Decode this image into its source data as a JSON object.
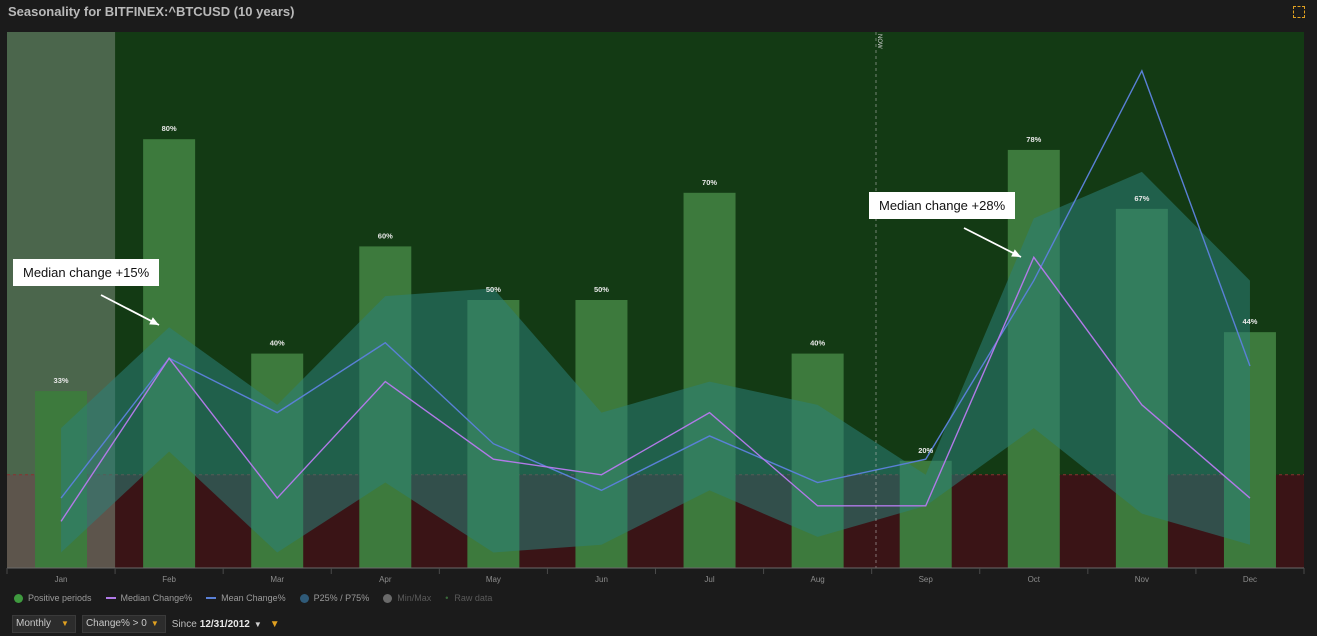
{
  "title": "Seasonality for BITFINEX:^BTCUSD (10 years)",
  "now_label": "NOW",
  "chart_data": {
    "type": "bar",
    "title": "Seasonality for BITFINEX:^BTCUSD (10 years)",
    "categories": [
      "Jan",
      "Feb",
      "Mar",
      "Apr",
      "May",
      "Jun",
      "Jul",
      "Aug",
      "Sep",
      "Oct",
      "Nov",
      "Dec"
    ],
    "positive_periods_pct": [
      33,
      80,
      40,
      60,
      50,
      50,
      70,
      40,
      20,
      78,
      67,
      44
    ],
    "positive_labels": [
      "33%",
      "80%",
      "40%",
      "60%",
      "50%",
      "50%",
      "70%",
      "40%",
      "20%",
      "78%",
      "67%",
      "44%"
    ],
    "series": [
      {
        "name": "Median Change%",
        "values": [
          -6,
          15,
          -3,
          12,
          2,
          0,
          8,
          -4,
          -4,
          28,
          9,
          -3
        ]
      },
      {
        "name": "Mean Change%",
        "values": [
          -3,
          15,
          8,
          17,
          4,
          -2,
          5,
          -1,
          2,
          25,
          52,
          14
        ]
      },
      {
        "name": "P25%",
        "values": [
          -10,
          3,
          -10,
          -1,
          -10,
          -9,
          -2,
          -8,
          -4,
          6,
          -5,
          -9
        ]
      },
      {
        "name": "P75%",
        "values": [
          6,
          19,
          9,
          23,
          24,
          8,
          12,
          9,
          0,
          33,
          39,
          25
        ]
      }
    ],
    "ylim": [
      -12,
      57
    ],
    "bar_scale_max": 100,
    "grid": false,
    "legend_position": "bottom-left",
    "now_between": [
      "Aug",
      "Sep"
    ]
  },
  "colors": {
    "positive_zone": "#133a14",
    "negative_zone": "#3a1416",
    "bars": "#3d7a3d",
    "band": "#2b8078",
    "median_line": "#b17ae8",
    "mean_line": "#5a80d6",
    "highlight": "#7a8a7a"
  },
  "legend": {
    "positive": "Positive periods",
    "median": "Median Change%",
    "mean": "Mean Change%",
    "pct": "P25% / P75%",
    "minmax": "Min/Max",
    "raw": "Raw data"
  },
  "controls": {
    "period": "Monthly",
    "filter": "Change% > 0",
    "since_label": "Since",
    "since_value": "12/31/2012"
  },
  "annotations": [
    {
      "text": "Median change +15%"
    },
    {
      "text": "Median change +28%"
    }
  ]
}
